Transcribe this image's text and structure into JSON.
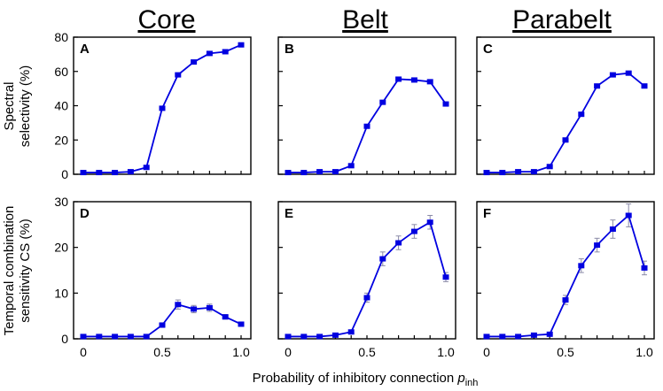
{
  "column_titles": [
    "Core",
    "Belt",
    "Parabelt"
  ],
  "row_ylabels": [
    [
      "Spectral",
      "selectivity (%)"
    ],
    [
      "Temporal combination",
      "sensitivity CS (%)"
    ]
  ],
  "xlabel": {
    "main": "Probability of inhibitory connection ",
    "var": "p",
    "sub": "inh"
  },
  "x_tick_labels": [
    "0",
    "0.5",
    "1.0"
  ],
  "colors": {
    "series": "#0000e0",
    "errorbar": "#8a8aa8",
    "axis": "#000000"
  },
  "chart_data": [
    {
      "type": "line",
      "panel": "A",
      "row": 0,
      "col": 0,
      "x": [
        0,
        0.1,
        0.2,
        0.3,
        0.4,
        0.5,
        0.6,
        0.7,
        0.8,
        0.9,
        1.0
      ],
      "y": [
        1,
        1,
        1,
        1.5,
        4,
        38.5,
        58,
        65.5,
        70.5,
        71.5,
        75.5
      ],
      "err": [
        0.4,
        0.4,
        0.4,
        0.4,
        0.5,
        1,
        1,
        1,
        1,
        1,
        1
      ],
      "xlim": [
        0,
        1
      ],
      "ylim": [
        0,
        80
      ],
      "yticks": [
        0,
        20,
        40,
        60,
        80
      ]
    },
    {
      "type": "line",
      "panel": "B",
      "row": 0,
      "col": 1,
      "x": [
        0,
        0.1,
        0.2,
        0.3,
        0.4,
        0.5,
        0.6,
        0.7,
        0.8,
        0.9,
        1.0
      ],
      "y": [
        1,
        1,
        1.5,
        1.5,
        5,
        28,
        42,
        55.5,
        55,
        54,
        41
      ],
      "err": [
        0.4,
        0.4,
        0.4,
        0.4,
        0.6,
        1,
        1,
        1,
        1,
        1,
        1
      ],
      "xlim": [
        0,
        1
      ],
      "ylim": [
        0,
        80
      ],
      "yticks": [
        0,
        20,
        40,
        60,
        80
      ]
    },
    {
      "type": "line",
      "panel": "C",
      "row": 0,
      "col": 2,
      "x": [
        0,
        0.1,
        0.2,
        0.3,
        0.4,
        0.5,
        0.6,
        0.7,
        0.8,
        0.9,
        1.0
      ],
      "y": [
        1,
        1,
        1.5,
        1.5,
        4.5,
        20,
        35,
        51.5,
        58,
        59,
        51.5
      ],
      "err": [
        0.4,
        0.4,
        0.4,
        0.4,
        0.6,
        1.2,
        1.2,
        1.2,
        1.2,
        1.2,
        1.2
      ],
      "xlim": [
        0,
        1
      ],
      "ylim": [
        0,
        80
      ],
      "yticks": [
        0,
        20,
        40,
        60,
        80
      ]
    },
    {
      "type": "line",
      "panel": "D",
      "row": 1,
      "col": 0,
      "x": [
        0,
        0.1,
        0.2,
        0.3,
        0.4,
        0.5,
        0.6,
        0.7,
        0.8,
        0.9,
        1.0
      ],
      "y": [
        0.5,
        0.5,
        0.5,
        0.5,
        0.5,
        3,
        7.5,
        6.5,
        6.8,
        4.8,
        3.2
      ],
      "err": [
        0.15,
        0.15,
        0.15,
        0.15,
        0.15,
        0.5,
        1,
        0.8,
        0.8,
        0.5,
        0.4
      ],
      "xlim": [
        0,
        1
      ],
      "ylim": [
        0,
        30
      ],
      "yticks": [
        0,
        10,
        20,
        30
      ]
    },
    {
      "type": "line",
      "panel": "E",
      "row": 1,
      "col": 1,
      "x": [
        0,
        0.1,
        0.2,
        0.3,
        0.4,
        0.5,
        0.6,
        0.7,
        0.8,
        0.9,
        1.0
      ],
      "y": [
        0.5,
        0.5,
        0.5,
        0.8,
        1.5,
        9,
        17.5,
        21,
        23.5,
        25.5,
        13.5
      ],
      "err": [
        0.15,
        0.15,
        0.15,
        0.2,
        0.3,
        1,
        1.5,
        1.5,
        1.5,
        1.5,
        1
      ],
      "xlim": [
        0,
        1
      ],
      "ylim": [
        0,
        30
      ],
      "yticks": [
        0,
        10,
        20,
        30
      ]
    },
    {
      "type": "line",
      "panel": "F",
      "row": 1,
      "col": 2,
      "x": [
        0,
        0.1,
        0.2,
        0.3,
        0.4,
        0.5,
        0.6,
        0.7,
        0.8,
        0.9,
        1.0
      ],
      "y": [
        0.5,
        0.5,
        0.5,
        0.8,
        1,
        8.5,
        16,
        20.5,
        24,
        27,
        15.5
      ],
      "err": [
        0.15,
        0.15,
        0.15,
        0.2,
        0.3,
        1,
        1.5,
        1.5,
        2,
        2.5,
        1.5
      ],
      "xlim": [
        0,
        1
      ],
      "ylim": [
        0,
        30
      ],
      "yticks": [
        0,
        10,
        20,
        30
      ]
    }
  ]
}
